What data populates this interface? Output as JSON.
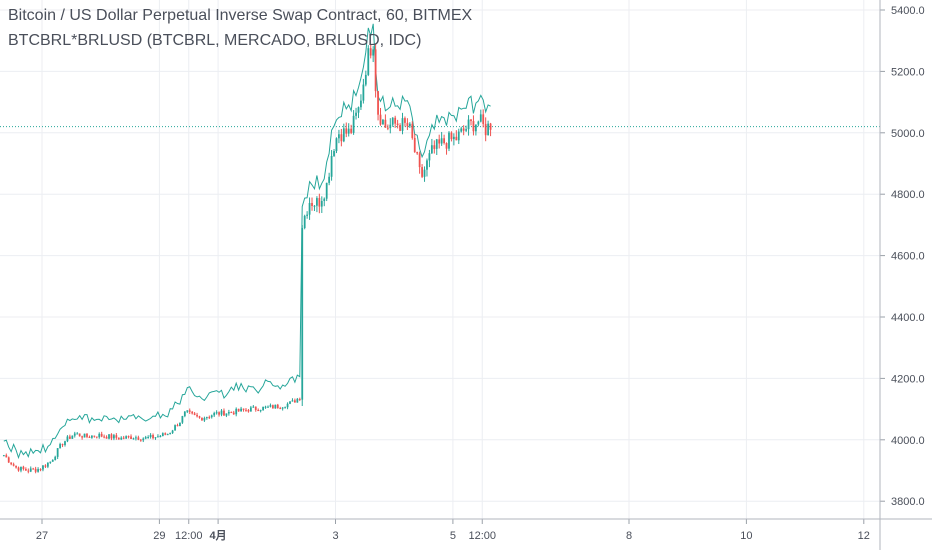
{
  "header": {
    "title": "Bitcoin / US Dollar Perpetual Inverse Swap Contract, 60, BITMEX",
    "subtitle": "BTCBRL*BRLUSD (BTCBRL, MERCADO, BRLUSD, IDC)"
  },
  "colors": {
    "up": "#26a69a",
    "down": "#ef5350",
    "overlay": "#26a69a",
    "grid": "#eceef2",
    "axis_text": "#4a4f5a",
    "price_line": "#26a69a"
  },
  "chart_data": {
    "type": "candlestick",
    "title": "Bitcoin / US Dollar Perpetual Inverse Swap Contract, 60, BITMEX",
    "subtitle": "BTCBRL*BRLUSD (BTCBRL, MERCADO, BRLUSD, IDC)",
    "ylim": [
      3780,
      5440
    ],
    "y_ticks": [
      "5400.0",
      "5200.0",
      "5000.0",
      "4800.0",
      "4600.0",
      "4400.0",
      "4200.0",
      "4000.0",
      "3800.0"
    ],
    "x_ticks": [
      {
        "label": "27",
        "t": 0.15
      },
      {
        "label": "29",
        "t": 2.15
      },
      {
        "label": "12:00",
        "t": 2.65
      },
      {
        "label": "4月",
        "t": 3.15,
        "bold": true
      },
      {
        "label": "3",
        "t": 5.15
      },
      {
        "label": "5",
        "t": 7.15
      },
      {
        "label": "12:00",
        "t": 7.65
      },
      {
        "label": "8",
        "t": 10.15
      },
      {
        "label": "10",
        "t": 12.15
      },
      {
        "label": "12",
        "t": 14.15
      }
    ],
    "last_price": 5020,
    "x_range_days": [
      -0.5,
      13.9
    ],
    "x_unit": "days from Mar 27 00:00",
    "anchors": [
      [
        -0.5,
        3950
      ],
      [
        -0.3,
        3910
      ],
      [
        -0.1,
        3900
      ],
      [
        0.1,
        3905
      ],
      [
        0.3,
        3930
      ],
      [
        0.5,
        3990
      ],
      [
        0.7,
        4020
      ],
      [
        0.9,
        4010
      ],
      [
        1.1,
        4015
      ],
      [
        1.3,
        4010
      ],
      [
        1.5,
        4005
      ],
      [
        1.7,
        4010
      ],
      [
        1.9,
        4005
      ],
      [
        2.1,
        4010
      ],
      [
        2.3,
        4020
      ],
      [
        2.5,
        4060
      ],
      [
        2.6,
        4090
      ],
      [
        2.7,
        4080
      ],
      [
        2.85,
        4070
      ],
      [
        3.1,
        4085
      ],
      [
        3.4,
        4090
      ],
      [
        3.7,
        4100
      ],
      [
        4.0,
        4105
      ],
      [
        4.2,
        4110
      ],
      [
        4.4,
        4120
      ],
      [
        4.55,
        4140
      ],
      [
        4.58,
        4700
      ],
      [
        4.7,
        4780
      ],
      [
        4.85,
        4770
      ],
      [
        5.0,
        4830
      ],
      [
        5.1,
        4950
      ],
      [
        5.2,
        5000
      ],
      [
        5.4,
        5000
      ],
      [
        5.55,
        5080
      ],
      [
        5.7,
        5250
      ],
      [
        5.8,
        5300
      ],
      [
        5.85,
        5080
      ],
      [
        6.0,
        5020
      ],
      [
        6.2,
        5030
      ],
      [
        6.4,
        5020
      ],
      [
        6.55,
        4900
      ],
      [
        6.6,
        4850
      ],
      [
        6.8,
        4940
      ],
      [
        7.0,
        4970
      ],
      [
        7.2,
        4980
      ],
      [
        7.4,
        5020
      ],
      [
        7.6,
        5040
      ],
      [
        7.7,
        5010
      ],
      [
        7.8,
        5030
      ]
    ],
    "overlay_note": "thin line: BTCBRL*BRLUSD"
  }
}
